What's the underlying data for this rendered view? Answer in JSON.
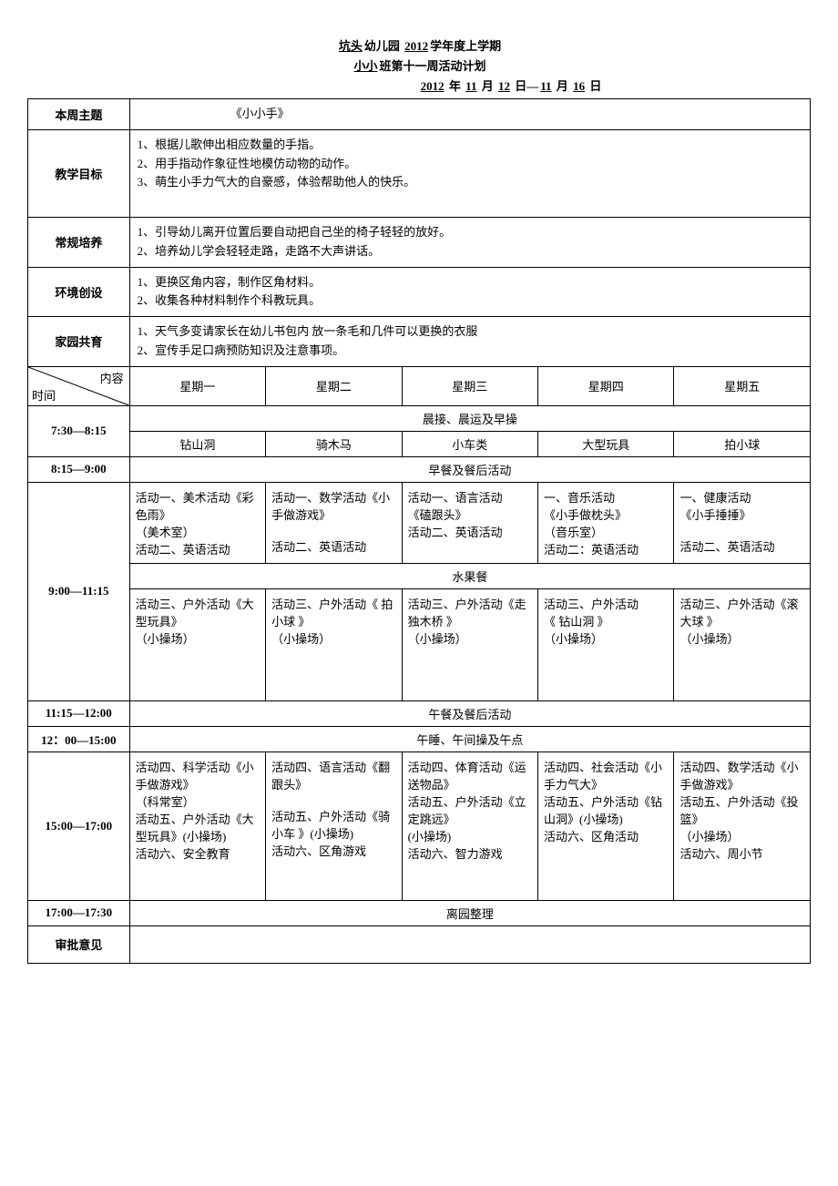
{
  "header": {
    "school": "坑头",
    "school_suffix": "幼儿园",
    "year": "2012",
    "year_suffix": "学年度上学期",
    "class": "小小",
    "class_suffix": "班第十一周活动计划",
    "date_year": "2012",
    "date_month1": "11",
    "date_day1": "12",
    "date_month2": "11",
    "date_day2": "16"
  },
  "rows": {
    "theme_label": "本周主题",
    "theme_value": "《小小手》",
    "goal_label": "教学目标",
    "goal_value": "1、根据儿歌伸出相应数量的手指。\n2、用手指动作象征性地模仿动物的动作。\n3、萌生小手力气大的自豪感，体验帮助他人的快乐。\n",
    "routine_label": "常规培养",
    "routine_value": "1、引导幼儿离开位置后要自动把自己坐的椅子轻轻的放好。\n2、培养幼儿学会轻轻走路，走路不大声讲话。",
    "env_label": "环境创设",
    "env_value": "1、更换区角内容，制作区角材料。\n2、收集各种材料制作个科教玩具。",
    "family_label": "家园共育",
    "family_value": "1、天气多变请家长在幼儿书包内  放一条毛和几件可以更换的衣服\n2、宣传手足口病预防知识及注意事项。"
  },
  "diag": {
    "top": "内容",
    "bottom": "时间"
  },
  "days": [
    "星期一",
    "星期二",
    "星期三",
    "星期四",
    "星期五"
  ],
  "time1": "7:30—8:15",
  "morning_header": "晨接、晨运及早操",
  "morning_acts": [
    "钻山洞",
    "骑木马",
    "小车类",
    "大型玩具",
    "拍小球"
  ],
  "time2": "8:15—9:00",
  "breakfast": "早餐及餐后活动",
  "time3": "9:00—11:15",
  "block1": [
    "活动一、美术活动《彩色雨》\n（美术室）\n活动二、英语活动",
    "活动一、数学活动《小手做游戏》\n\n活动二、英语活动",
    "活动一、语言活动\n《磕跟头》\n活动二、英语活动",
    "一、音乐活动\n《小手做枕头》\n（音乐室）\n活动二：英语活动",
    "一、健康活动\n《小手捶捶》\n\n活动二、英语活动"
  ],
  "fruit": "水果餐",
  "block2": [
    "活动三、户外活动《大型玩具》\n（小操场）",
    "活动三、户外活动《 拍小球 》\n（小操场）",
    "活动三、户外活动《走独木桥 》\n（小操场）",
    "活动三、户外活动\n《 钻山洞 》\n（小操场）",
    "活动三、户外活动《滚大球 》\n（小操场）"
  ],
  "time4": "11:15—12:00",
  "lunch": "午餐及餐后活动",
  "time5": "12：00—15:00",
  "nap": "午睡、午间操及午点",
  "time6": "15:00—17:00",
  "block3": [
    "活动四、科学活动《小手做游戏》\n（科常室）\n活动五、户外活动《大型玩具》(小操场)\n活动六、安全教育",
    "活动四、语言活动《翻跟头》\n\n活动五、户外活动《骑小车 》(小操场)\n活动六、区角游戏",
    "活动四、体育活动《运送物品》\n活动五、户外活动《立定跳远》\n(小操场)\n活动六、智力游戏",
    "活动四、社会活动《小手力气大》\n活动五、户外活动《钻山洞》(小操场)\n活动六、区角活动",
    "活动四、数学活动《小手做游戏》\n活动五、户外活动《投篮》\n（小操场）\n活动六、周小节"
  ],
  "time7": "17:00—17:30",
  "leave": "离园整理",
  "approve_label": "审批意见",
  "approve_value": ""
}
